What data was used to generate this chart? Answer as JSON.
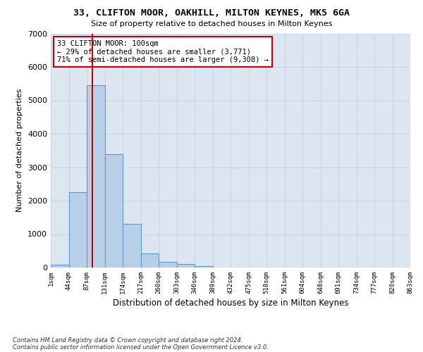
{
  "title_line1": "33, CLIFTON MOOR, OAKHILL, MILTON KEYNES, MK5 6GA",
  "title_line2": "Size of property relative to detached houses in Milton Keynes",
  "xlabel": "Distribution of detached houses by size in Milton Keynes",
  "ylabel": "Number of detached properties",
  "bin_labels": [
    "1sqm",
    "44sqm",
    "87sqm",
    "131sqm",
    "174sqm",
    "217sqm",
    "260sqm",
    "303sqm",
    "346sqm",
    "389sqm",
    "432sqm",
    "475sqm",
    "518sqm",
    "561sqm",
    "604sqm",
    "648sqm",
    "691sqm",
    "734sqm",
    "777sqm",
    "820sqm",
    "863sqm"
  ],
  "bin_edges": [
    1,
    44,
    87,
    131,
    174,
    217,
    260,
    303,
    346,
    389,
    432,
    475,
    518,
    561,
    604,
    648,
    691,
    734,
    777,
    820,
    863
  ],
  "bar_values": [
    75,
    2250,
    5450,
    3400,
    1300,
    420,
    170,
    105,
    50,
    10,
    0,
    0,
    0,
    0,
    0,
    0,
    0,
    0,
    0,
    0
  ],
  "bar_color": "#b8cfe8",
  "bar_edgecolor": "#5b9bd5",
  "property_size_sqm": 100,
  "vline_color": "#cc0000",
  "annotation_text": "33 CLIFTON MOOR: 100sqm\n← 29% of detached houses are smaller (3,771)\n71% of semi-detached houses are larger (9,308) →",
  "annotation_box_edgecolor": "#cc0000",
  "ylim": [
    0,
    7000
  ],
  "yticks": [
    0,
    1000,
    2000,
    3000,
    4000,
    5000,
    6000,
    7000
  ],
  "grid_color": "#c8d4e8",
  "axes_bg_color": "#dce6f0",
  "footnote1": "Contains HM Land Registry data © Crown copyright and database right 2024.",
  "footnote2": "Contains public sector information licensed under the Open Government Licence v3.0."
}
